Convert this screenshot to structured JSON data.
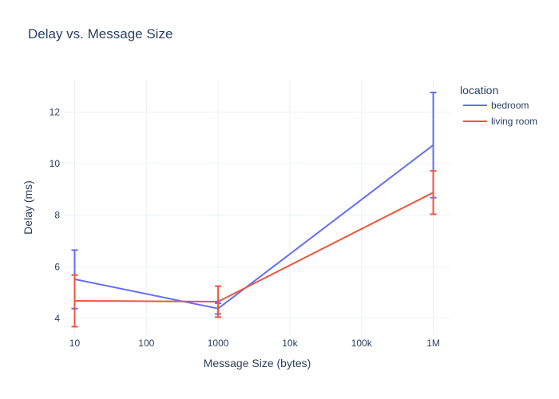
{
  "chart_data": {
    "type": "line",
    "title": "Delay vs. Message Size",
    "xlabel": "Message Size (bytes)",
    "ylabel": "Delay (ms)",
    "x_scale": "log",
    "x": [
      10,
      1000,
      1000000
    ],
    "x_tick_values": [
      10,
      100,
      1000,
      10000,
      100000,
      1000000
    ],
    "x_tick_labels": [
      "10",
      "100",
      "1000",
      "10k",
      "100k",
      "1M"
    ],
    "y_tick_values": [
      4,
      6,
      8,
      10,
      12
    ],
    "y_tick_labels": [
      "4",
      "6",
      "8",
      "10",
      "12"
    ],
    "ylim": [
      3.35,
      13.25
    ],
    "grid": true,
    "legend": {
      "title": "location",
      "placement": "top-right"
    },
    "series": [
      {
        "name": "bedroom",
        "color": "#636efa",
        "values": [
          5.52,
          4.38,
          10.72
        ],
        "error_low": [
          4.38,
          4.17,
          8.68
        ],
        "error_high": [
          6.65,
          4.59,
          12.76
        ]
      },
      {
        "name": "living room",
        "color": "#ef553b",
        "values": [
          4.68,
          4.65,
          8.88
        ],
        "error_low": [
          3.68,
          4.05,
          8.04
        ],
        "error_high": [
          5.68,
          5.25,
          9.72
        ]
      }
    ]
  }
}
